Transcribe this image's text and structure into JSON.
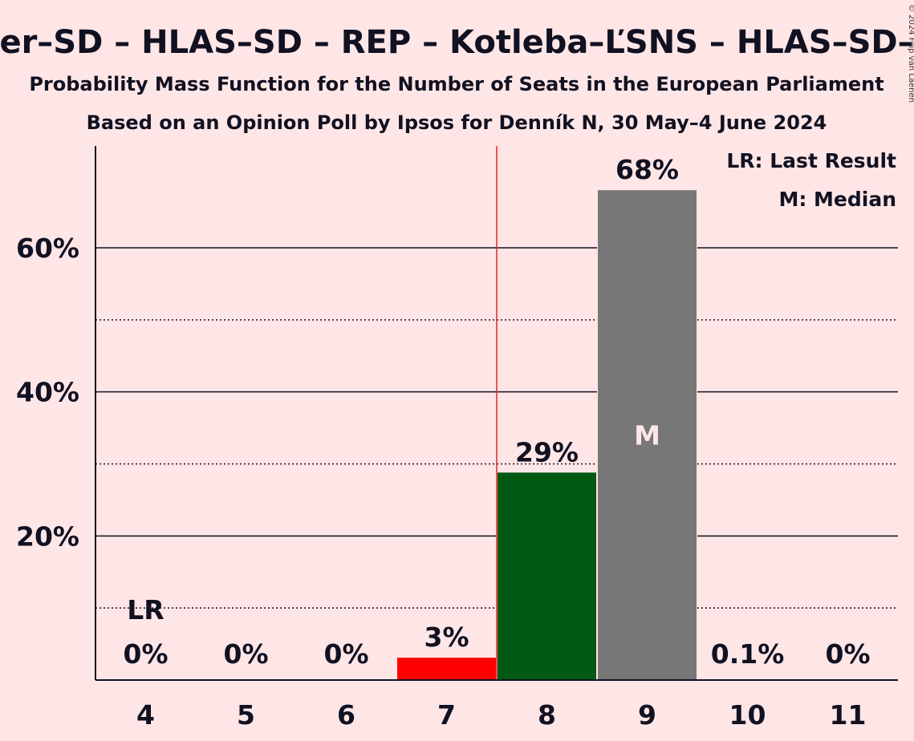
{
  "title": "er–SD – HLAS–SD – REP – Kotleba–ĽSNS – HLAS–SD–",
  "subtitle1": "Probability Mass Function for the Number of Seats in the European Parliament",
  "subtitle2": "Based on an Opinion Poll by Ipsos for Denník N, 30 May–4 June 2024",
  "copyright": "© 2024 Filip van Laenen",
  "legend": {
    "lr": "LR: Last Result",
    "m": "M: Median"
  },
  "colors": {
    "background": "#FFE6E6",
    "red": "#FF0000",
    "green": "#005A14",
    "grey": "#777777",
    "majority_line": "#E8231F"
  },
  "chart_data": {
    "type": "bar",
    "categories": [
      "4",
      "5",
      "6",
      "7",
      "8",
      "9",
      "10",
      "11"
    ],
    "values": [
      0,
      0,
      0,
      3,
      29,
      68,
      0.1,
      0
    ],
    "value_labels": [
      "0%",
      "0%",
      "0%",
      "3%",
      "29%",
      "68%",
      "0.1%",
      "0%"
    ],
    "bar_values_exact": [
      0,
      0,
      0,
      3.1,
      28.8,
      68,
      0.1,
      0
    ],
    "bar_colors": [
      "#FF0000",
      "#FF0000",
      "#FF0000",
      "#FF0000",
      "#005A14",
      "#777777",
      "#777777",
      "#777777"
    ],
    "ylim": [
      0,
      74
    ],
    "yticks": [
      20,
      40,
      60
    ],
    "ytick_labels": [
      "20%",
      "40%",
      "60%"
    ],
    "ygrid_dotted": [
      10,
      30,
      50
    ],
    "last_result": {
      "seats": "4",
      "label": "LR"
    },
    "median": {
      "seats": "9",
      "label": "M"
    },
    "majority_threshold_between": [
      "7",
      "8"
    ],
    "legend_position": "top-right",
    "grid": true
  }
}
